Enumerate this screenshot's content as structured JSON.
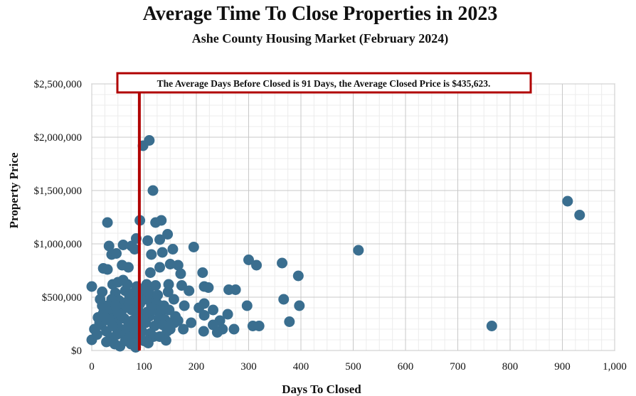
{
  "chart_data": {
    "type": "scatter",
    "title": "Average Time To Close Properties in 2023",
    "subtitle": "Ashe County Housing Market (February 2024)",
    "xlabel": "Days To Closed",
    "ylabel": "Property Price",
    "xlim": [
      0,
      1000
    ],
    "ylim": [
      0,
      2500000
    ],
    "x_ticks": [
      0,
      100,
      200,
      300,
      400,
      500,
      600,
      700,
      800,
      900,
      1000
    ],
    "x_tick_labels": [
      "0",
      "100",
      "200",
      "300",
      "400",
      "500",
      "600",
      "700",
      "800",
      "900",
      "1,000"
    ],
    "y_ticks": [
      0,
      500000,
      1000000,
      1500000,
      2000000,
      2500000
    ],
    "y_tick_labels": [
      "$0",
      "$500,000",
      "$1,000,000",
      "$1,500,000",
      "$2,000,000",
      "$2,500,000"
    ],
    "grid": true,
    "marker_color": "#3a6e8f",
    "reference_line": {
      "x": 91,
      "color": "#b00000"
    },
    "annotation": "The Average Days Before Closed is 91 Days, the Average Closed Price is $435,623.",
    "points": [
      [
        910,
        1400000
      ],
      [
        933,
        1270000
      ],
      [
        765,
        230000
      ],
      [
        510,
        940000
      ],
      [
        110,
        1970000
      ],
      [
        98,
        1920000
      ],
      [
        117,
        1500000
      ],
      [
        92,
        1220000
      ],
      [
        122,
        1200000
      ],
      [
        133,
        1220000
      ],
      [
        30,
        1200000
      ],
      [
        145,
        1090000
      ],
      [
        130,
        1040000
      ],
      [
        107,
        1030000
      ],
      [
        85,
        1050000
      ],
      [
        76,
        980000
      ],
      [
        33,
        980000
      ],
      [
        60,
        990000
      ],
      [
        82,
        950000
      ],
      [
        114,
        900000
      ],
      [
        135,
        920000
      ],
      [
        155,
        950000
      ],
      [
        195,
        970000
      ],
      [
        38,
        900000
      ],
      [
        47,
        910000
      ],
      [
        300,
        850000
      ],
      [
        315,
        800000
      ],
      [
        364,
        820000
      ],
      [
        395,
        700000
      ],
      [
        150,
        810000
      ],
      [
        165,
        800000
      ],
      [
        170,
        720000
      ],
      [
        212,
        730000
      ],
      [
        215,
        600000
      ],
      [
        22,
        770000
      ],
      [
        30,
        760000
      ],
      [
        70,
        780000
      ],
      [
        58,
        800000
      ],
      [
        112,
        730000
      ],
      [
        130,
        780000
      ],
      [
        105,
        620000
      ],
      [
        122,
        610000
      ],
      [
        147,
        620000
      ],
      [
        172,
        610000
      ],
      [
        186,
        560000
      ],
      [
        223,
        590000
      ],
      [
        262,
        570000
      ],
      [
        275,
        570000
      ],
      [
        0,
        600000
      ],
      [
        20,
        550000
      ],
      [
        40,
        620000
      ],
      [
        50,
        640000
      ],
      [
        64,
        560000
      ],
      [
        80,
        540000
      ],
      [
        102,
        560000
      ],
      [
        146,
        550000
      ],
      [
        157,
        480000
      ],
      [
        367,
        480000
      ],
      [
        177,
        420000
      ],
      [
        205,
        400000
      ],
      [
        215,
        440000
      ],
      [
        232,
        380000
      ],
      [
        297,
        420000
      ],
      [
        397,
        420000
      ],
      [
        215,
        330000
      ],
      [
        245,
        280000
      ],
      [
        260,
        340000
      ],
      [
        378,
        270000
      ],
      [
        232,
        240000
      ],
      [
        250,
        200000
      ],
      [
        272,
        200000
      ],
      [
        308,
        230000
      ],
      [
        320,
        230000
      ],
      [
        214,
        180000
      ],
      [
        240,
        170000
      ],
      [
        150,
        200000
      ],
      [
        175,
        200000
      ],
      [
        190,
        260000
      ],
      [
        12,
        310000
      ],
      [
        5,
        200000
      ],
      [
        0,
        100000
      ],
      [
        10,
        150000
      ],
      [
        18,
        240000
      ],
      [
        25,
        410000
      ],
      [
        35,
        360000
      ],
      [
        42,
        300000
      ],
      [
        48,
        250000
      ],
      [
        55,
        200000
      ],
      [
        62,
        150000
      ],
      [
        68,
        100000
      ],
      [
        75,
        60000
      ],
      [
        84,
        30000
      ],
      [
        90,
        120000
      ],
      [
        96,
        180000
      ],
      [
        103,
        260000
      ],
      [
        110,
        320000
      ],
      [
        118,
        380000
      ],
      [
        125,
        440000
      ],
      [
        132,
        350000
      ],
      [
        140,
        290000
      ],
      [
        120,
        230000
      ],
      [
        112,
        160000
      ],
      [
        100,
        90000
      ],
      [
        95,
        330000
      ],
      [
        88,
        400000
      ],
      [
        80,
        460000
      ],
      [
        72,
        520000
      ],
      [
        66,
        450000
      ],
      [
        58,
        380000
      ],
      [
        52,
        470000
      ],
      [
        45,
        540000
      ],
      [
        38,
        480000
      ],
      [
        30,
        420000
      ],
      [
        22,
        350000
      ],
      [
        15,
        260000
      ],
      [
        28,
        180000
      ],
      [
        36,
        120000
      ],
      [
        44,
        60000
      ],
      [
        54,
        40000
      ],
      [
        64,
        90000
      ],
      [
        74,
        140000
      ],
      [
        82,
        200000
      ],
      [
        90,
        260000
      ],
      [
        98,
        300000
      ],
      [
        106,
        360000
      ],
      [
        114,
        420000
      ],
      [
        122,
        480000
      ],
      [
        128,
        300000
      ],
      [
        136,
        240000
      ],
      [
        144,
        180000
      ],
      [
        152,
        260000
      ],
      [
        160,
        320000
      ],
      [
        118,
        130000
      ],
      [
        108,
        70000
      ],
      [
        92,
        440000
      ],
      [
        86,
        340000
      ],
      [
        78,
        280000
      ],
      [
        70,
        230000
      ],
      [
        62,
        300000
      ],
      [
        56,
        330000
      ],
      [
        50,
        360000
      ],
      [
        46,
        420000
      ],
      [
        40,
        230000
      ],
      [
        34,
        280000
      ],
      [
        26,
        300000
      ],
      [
        20,
        420000
      ],
      [
        16,
        480000
      ],
      [
        60,
        660000
      ],
      [
        68,
        620000
      ],
      [
        86,
        600000
      ],
      [
        94,
        520000
      ],
      [
        104,
        480000
      ],
      [
        110,
        540000
      ],
      [
        126,
        520000
      ],
      [
        138,
        420000
      ],
      [
        148,
        380000
      ],
      [
        158,
        260000
      ],
      [
        165,
        280000
      ],
      [
        142,
        95000
      ],
      [
        130,
        130000
      ],
      [
        28,
        80000
      ],
      [
        48,
        150000
      ],
      [
        76,
        380000
      ]
    ]
  }
}
